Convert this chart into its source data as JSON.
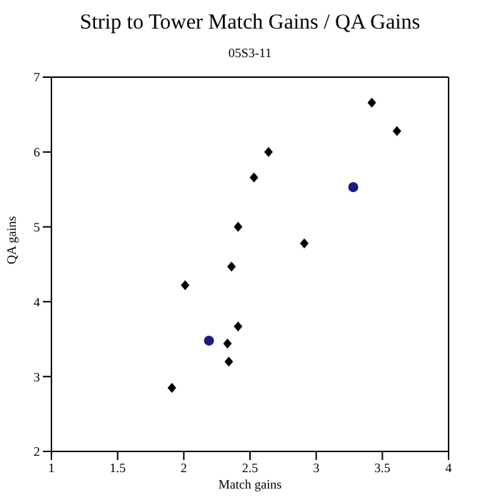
{
  "chart_data": {
    "type": "scatter",
    "title": "Strip to Tower Match Gains / QA Gains",
    "subtitle": "05S3-11",
    "xlabel": "Match gains",
    "ylabel": "QA gains",
    "series": [
      {
        "color": "#000000",
        "marker": "diamond",
        "x": [
          1.91,
          2.01,
          2.33,
          2.34,
          2.36,
          2.41,
          2.41,
          2.53,
          2.64,
          2.91,
          3.42,
          3.61
        ],
        "values": [
          2.85,
          4.22,
          3.44,
          3.2,
          4.47,
          3.67,
          5.0,
          5.66,
          6.0,
          4.78,
          6.66,
          6.28
        ]
      },
      {
        "color": "#1a1a80",
        "marker": "circle",
        "x": [
          2.19,
          3.28
        ],
        "values": [
          3.48,
          5.53
        ]
      }
    ],
    "xlim": [
      1,
      4
    ],
    "xticks": [
      1,
      1.5,
      2,
      2.5,
      3,
      3.5,
      4
    ],
    "ylim": [
      2,
      7
    ],
    "yticks": [
      2,
      3,
      4,
      5,
      6,
      7
    ],
    "grid": false,
    "legend": false
  }
}
